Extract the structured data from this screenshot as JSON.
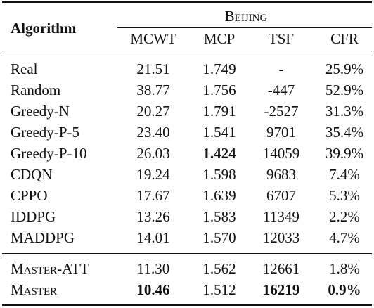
{
  "table": {
    "group_header": "Beijing",
    "algorithm_header": "Algorithm",
    "columns": [
      "MCWT",
      "MCP",
      "TSF",
      "CFR"
    ],
    "rows": [
      {
        "name": "Real",
        "small_caps": false,
        "values": [
          "21.51",
          "1.749",
          "-",
          "25.9%"
        ],
        "bold": [
          false,
          false,
          false,
          false
        ]
      },
      {
        "name": "Random",
        "small_caps": false,
        "values": [
          "38.77",
          "1.756",
          "-447",
          "52.9%"
        ],
        "bold": [
          false,
          false,
          false,
          false
        ]
      },
      {
        "name": "Greedy-N",
        "small_caps": false,
        "values": [
          "20.27",
          "1.791",
          "-2527",
          "31.3%"
        ],
        "bold": [
          false,
          false,
          false,
          false
        ]
      },
      {
        "name": "Greedy-P-5",
        "small_caps": false,
        "values": [
          "23.40",
          "1.541",
          "9701",
          "35.4%"
        ],
        "bold": [
          false,
          false,
          false,
          false
        ]
      },
      {
        "name": "Greedy-P-10",
        "small_caps": false,
        "values": [
          "26.03",
          "1.424",
          "14059",
          "39.9%"
        ],
        "bold": [
          false,
          true,
          false,
          false
        ]
      },
      {
        "name": "CDQN",
        "small_caps": false,
        "values": [
          "19.24",
          "1.598",
          "9683",
          "7.4%"
        ],
        "bold": [
          false,
          false,
          false,
          false
        ]
      },
      {
        "name": "CPPO",
        "small_caps": false,
        "values": [
          "17.67",
          "1.639",
          "6707",
          "5.3%"
        ],
        "bold": [
          false,
          false,
          false,
          false
        ]
      },
      {
        "name": "IDDPG",
        "small_caps": false,
        "values": [
          "13.26",
          "1.583",
          "11349",
          "2.2%"
        ],
        "bold": [
          false,
          false,
          false,
          false
        ]
      },
      {
        "name": "MADDPG",
        "small_caps": false,
        "values": [
          "14.01",
          "1.570",
          "12033",
          "4.7%"
        ],
        "bold": [
          false,
          false,
          false,
          false
        ]
      },
      {
        "name": "Master-ATT",
        "small_caps": true,
        "values": [
          "11.30",
          "1.562",
          "12661",
          "1.8%"
        ],
        "bold": [
          false,
          false,
          false,
          false
        ]
      },
      {
        "name": "Master",
        "small_caps": true,
        "values": [
          "10.46",
          "1.512",
          "16219",
          "0.9%"
        ],
        "bold": [
          true,
          false,
          true,
          true
        ]
      }
    ]
  }
}
